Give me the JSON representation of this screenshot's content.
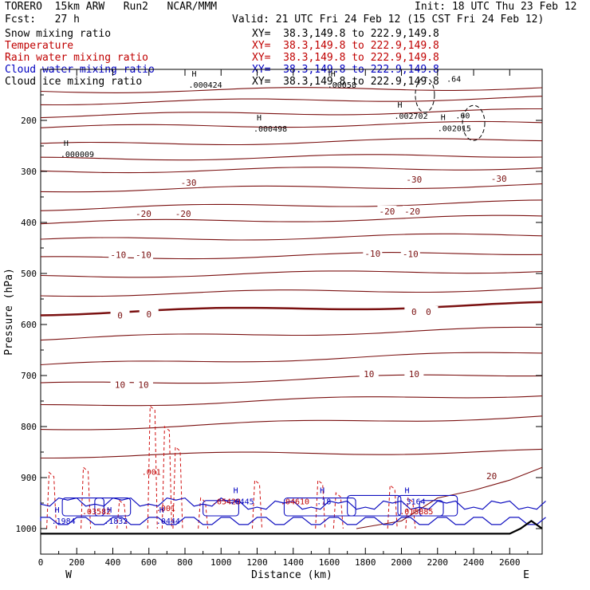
{
  "header": {
    "model": "TORERO  15km ARW   Run2   NCAR/MMM",
    "init": "Init: 18 UTC Thu 23 Feb 12",
    "fcst": "Fcst:   27 h",
    "valid": "Valid: 21 UTC Fri 24 Feb 12 (15 CST Fri 24 Feb 12)"
  },
  "fields": [
    {
      "name": "Snow mixing ratio",
      "xy": "XY=  38.3,149.8 to 222.9,149.8",
      "color": "#000000"
    },
    {
      "name": "Temperature",
      "xy": "XY=  38.3,149.8 to 222.9,149.8",
      "color": "#c00000"
    },
    {
      "name": "Rain water mixing ratio",
      "xy": "XY=  38.3,149.8 to 222.9,149.8",
      "color": "#c00000"
    },
    {
      "name": "Cloud water mixing ratio",
      "xy": "XY=  38.3,149.8 to 222.9,149.8",
      "color": "#0000c0"
    },
    {
      "name": "Cloud ice mixing ratio",
      "xy": "XY=  38.3,149.8 to 222.9,149.8",
      "color": "#000000"
    }
  ],
  "chart_data": {
    "type": "line",
    "title": "",
    "xlabel": "Distance (km)",
    "ylabel": "Pressure (hPa)",
    "xlim": [
      0,
      2780
    ],
    "ylim": [
      100,
      1050
    ],
    "x_ticks": [
      0,
      200,
      400,
      600,
      800,
      1000,
      1200,
      1400,
      1600,
      1800,
      2000,
      2200,
      2400,
      2600
    ],
    "y_ticks": [
      200,
      300,
      400,
      500,
      600,
      700,
      800,
      900,
      1000
    ],
    "west_label": "W",
    "east_label": "E",
    "temperature_contour_labels": [
      {
        "text": "-30",
        "x": 820,
        "p": 322
      },
      {
        "text": "-30",
        "x": 2070,
        "p": 316
      },
      {
        "text": "-30",
        "x": 2540,
        "p": 314
      },
      {
        "text": "-20",
        "x": 570,
        "p": 383
      },
      {
        "text": "-20",
        "x": 790,
        "p": 383
      },
      {
        "text": "-20",
        "x": 1920,
        "p": 378
      },
      {
        "text": "-20",
        "x": 2060,
        "p": 378
      },
      {
        "text": "-10",
        "x": 430,
        "p": 463
      },
      {
        "text": "-10",
        "x": 570,
        "p": 463
      },
      {
        "text": "-10",
        "x": 1840,
        "p": 461
      },
      {
        "text": "-10",
        "x": 2050,
        "p": 462
      },
      {
        "text": "0",
        "x": 440,
        "p": 582
      },
      {
        "text": "0",
        "x": 600,
        "p": 580
      },
      {
        "text": "0",
        "x": 2070,
        "p": 575
      },
      {
        "text": "0",
        "x": 2150,
        "p": 575
      },
      {
        "text": "10",
        "x": 440,
        "p": 718
      },
      {
        "text": "10",
        "x": 570,
        "p": 718
      },
      {
        "text": "10",
        "x": 1820,
        "p": 697
      },
      {
        "text": "10",
        "x": 2070,
        "p": 697
      },
      {
        "text": "20",
        "x": 2500,
        "p": 897
      }
    ],
    "temperature_isotherm_pressures_west": [
      143,
      166,
      191,
      214,
      248,
      276,
      300,
      337,
      373,
      401,
      435,
      471,
      506,
      542,
      578,
      628,
      680,
      718,
      760,
      805,
      858
    ],
    "temperature_isotherm_pressures_east": [
      136,
      156,
      181,
      205,
      237,
      268,
      292,
      327,
      360,
      389,
      424,
      459,
      494,
      530,
      560,
      608,
      655,
      697,
      737,
      780
    ],
    "cloud_ice_maxima": [
      {
        "text": ".000424",
        "x": 820,
        "p": 130
      },
      {
        "text": ".000498",
        "x": 1180,
        "p": 216
      },
      {
        "text": ".000009",
        "x": 110,
        "p": 266
      },
      {
        "text": ".002702",
        "x": 1960,
        "p": 191
      },
      {
        "text": ".002015",
        "x": 2200,
        "p": 215
      },
      {
        "text": ".00058",
        "x": 1590,
        "p": 130
      }
    ],
    "rain_maxima": [
      {
        "text": ".001",
        "x": 560,
        "p": 888
      },
      {
        "text": ".001",
        "x": 640,
        "p": 959
      },
      {
        "text": ".03582",
        "x": 230,
        "p": 966
      },
      {
        "text": ".05428",
        "x": 950,
        "p": 946
      },
      {
        "text": ".04610",
        "x": 1330,
        "p": 946
      },
      {
        "text": ".015885",
        "x": 1990,
        "p": 966
      }
    ],
    "cloud_water_maxima": [
      {
        "text": ".1984",
        "x": 60,
        "p": 984
      },
      {
        "text": ".1832",
        "x": 350,
        "p": 984
      },
      {
        "text": ".0444",
        "x": 640,
        "p": 984
      },
      {
        "text": ".0445",
        "x": 1050,
        "p": 946
      },
      {
        "text": ".18",
        "x": 1530,
        "p": 946
      },
      {
        "text": ".3164",
        "x": 2000,
        "p": 946
      }
    ],
    "snow_labels": [
      {
        "text": ".64",
        "x": 2250,
        "p": 118
      },
      {
        "text": ".60",
        "x": 2300,
        "p": 190
      }
    ]
  }
}
